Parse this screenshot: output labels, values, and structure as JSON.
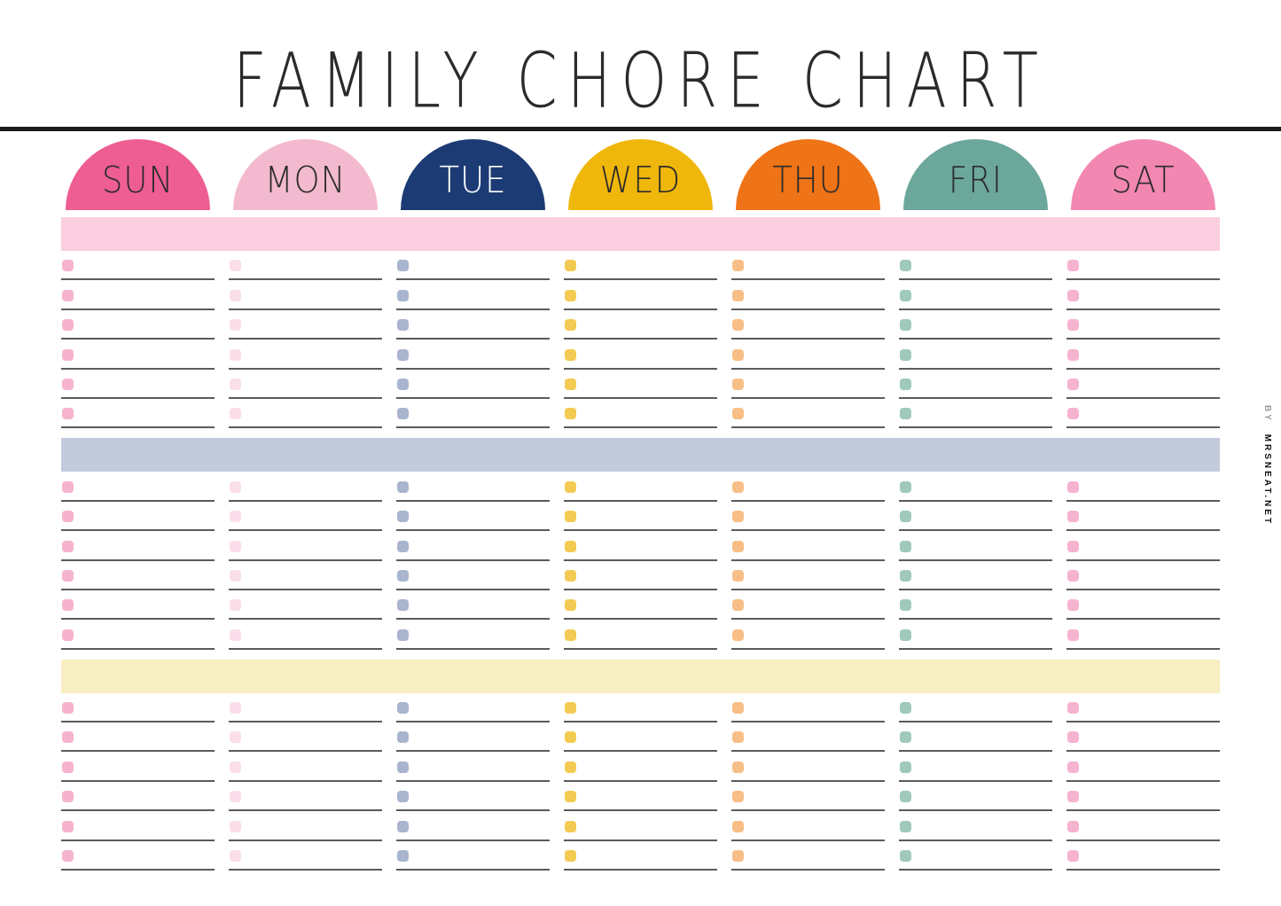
{
  "header": {
    "title": "FAMILY CHORE CHART"
  },
  "credit": {
    "prefix": "BY",
    "name": "MRSNEAT.NET"
  },
  "colors": {
    "divider": "#1a1a1a",
    "chore_line": "#5b5b5b",
    "background": "#ffffff"
  },
  "days": [
    {
      "label": "SUN",
      "dome_color": "#ee5e92",
      "label_color": "#2b2b2b",
      "checkbox_color": "#f6b3ce"
    },
    {
      "label": "MON",
      "dome_color": "#f3bacf",
      "label_color": "#2b2b2b",
      "checkbox_color": "#fadee9"
    },
    {
      "label": "TUE",
      "dome_color": "#1c3b74",
      "label_color": "#ffffff",
      "checkbox_color": "#a9b5ce"
    },
    {
      "label": "WED",
      "dome_color": "#efb70b",
      "label_color": "#2b2b2b",
      "checkbox_color": "#f3cb52"
    },
    {
      "label": "THU",
      "dome_color": "#ef7317",
      "label_color": "#2b2b2b",
      "checkbox_color": "#f7bf87"
    },
    {
      "label": "FRI",
      "dome_color": "#6ca79b",
      "label_color": "#2b2b2b",
      "checkbox_color": "#9fc9bc"
    },
    {
      "label": "SAT",
      "dome_color": "#f287b2",
      "label_color": "#2b2b2b",
      "checkbox_color": "#f6b3d0"
    }
  ],
  "sections": [
    {
      "name": "section-1",
      "band_color": "#fbcfdf",
      "rows_per_column": 6
    },
    {
      "name": "section-2",
      "band_color": "#c2cbdb",
      "rows_per_column": 6
    },
    {
      "name": "section-3",
      "band_color": "#f8eec3",
      "rows_per_column": 6
    }
  ]
}
